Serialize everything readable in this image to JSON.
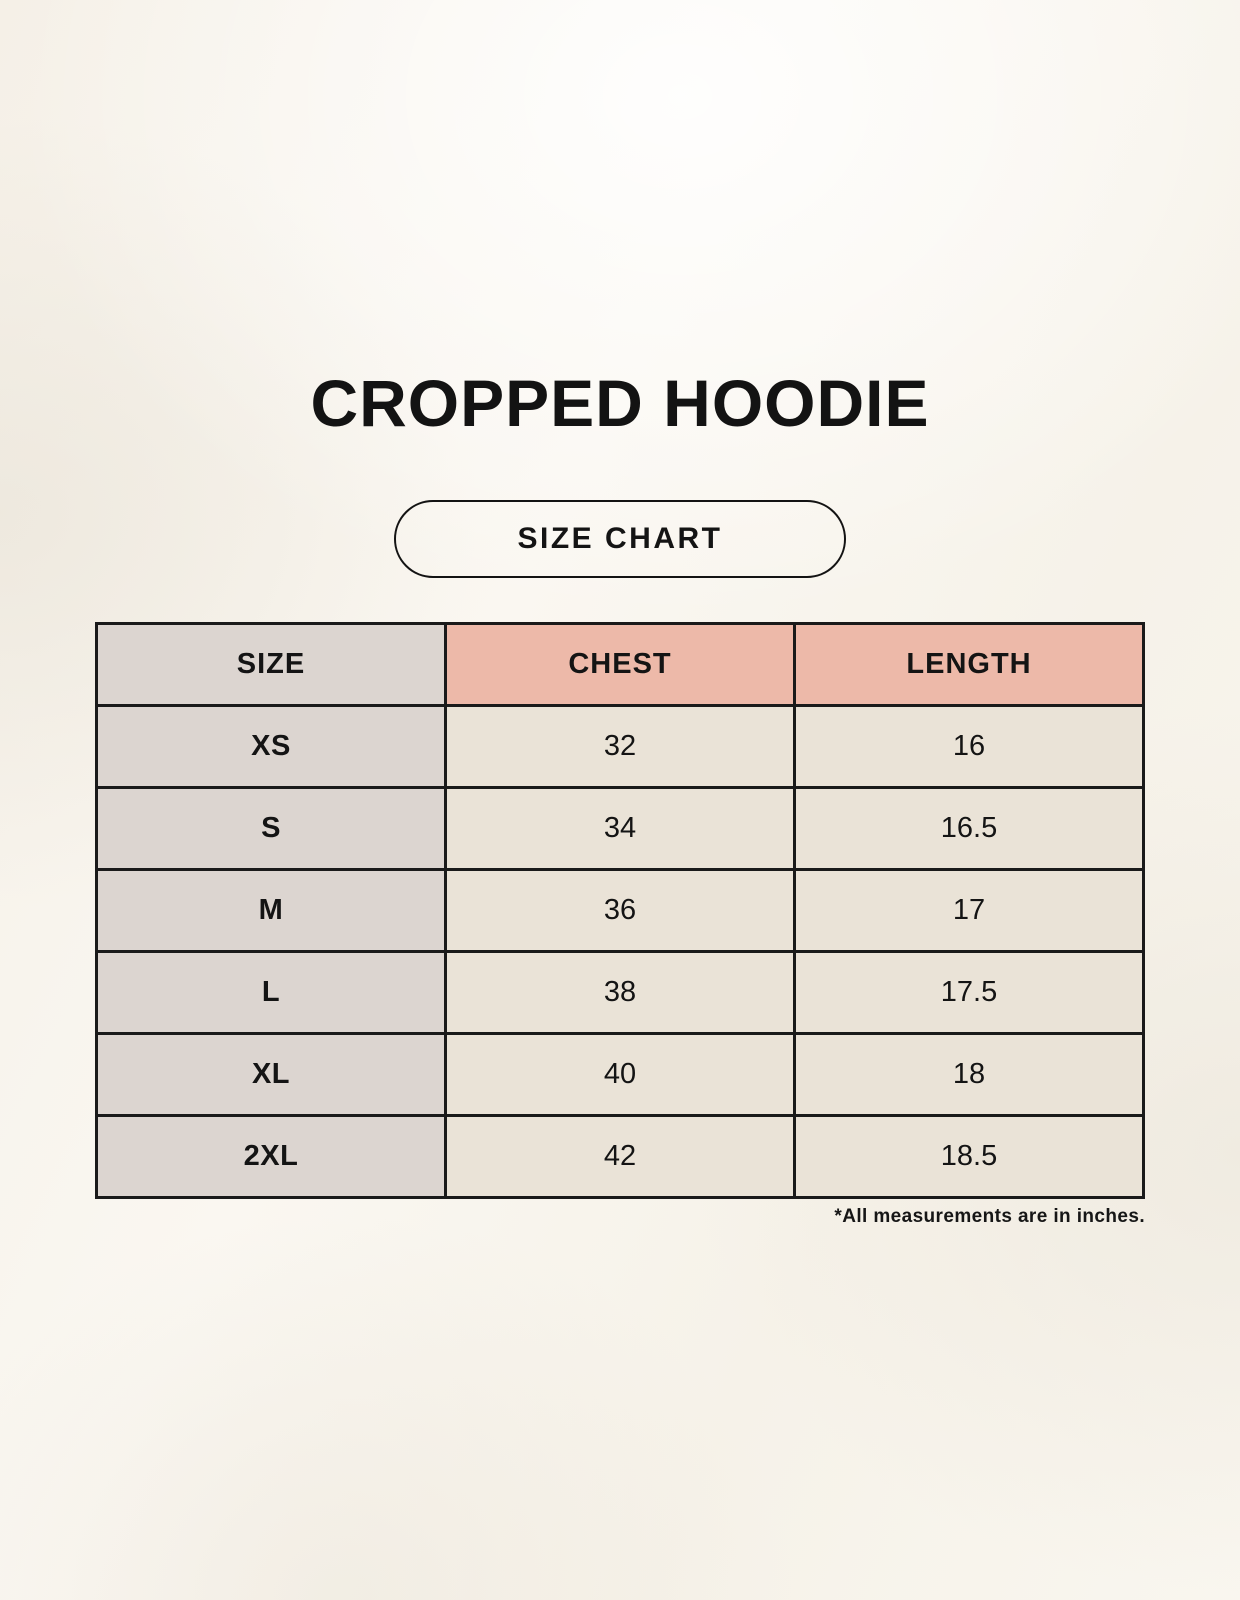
{
  "header": {
    "title": "CROPPED HOODIE",
    "badge_label": "SIZE CHART"
  },
  "chart_data": {
    "type": "table",
    "title": "CROPPED HOODIE",
    "subtitle": "SIZE CHART",
    "columns": [
      "SIZE",
      "CHEST",
      "LENGTH"
    ],
    "rows": [
      [
        "XS",
        "32",
        "16"
      ],
      [
        "S",
        "34",
        "16.5"
      ],
      [
        "M",
        "36",
        "17"
      ],
      [
        "L",
        "38",
        "17.5"
      ],
      [
        "XL",
        "40",
        "18"
      ],
      [
        "2XL",
        "42",
        "18.5"
      ]
    ],
    "units": "inches",
    "footnote": "*All measurements are in inches."
  },
  "colors": {
    "page_bg": "#f7f3eb",
    "accent_pink": "#edb9a9",
    "cell_gray": "#dcd5d0",
    "cell_cream": "#eae3d7",
    "border_dark": "#1a1a1a",
    "text_dark": "#141414"
  }
}
